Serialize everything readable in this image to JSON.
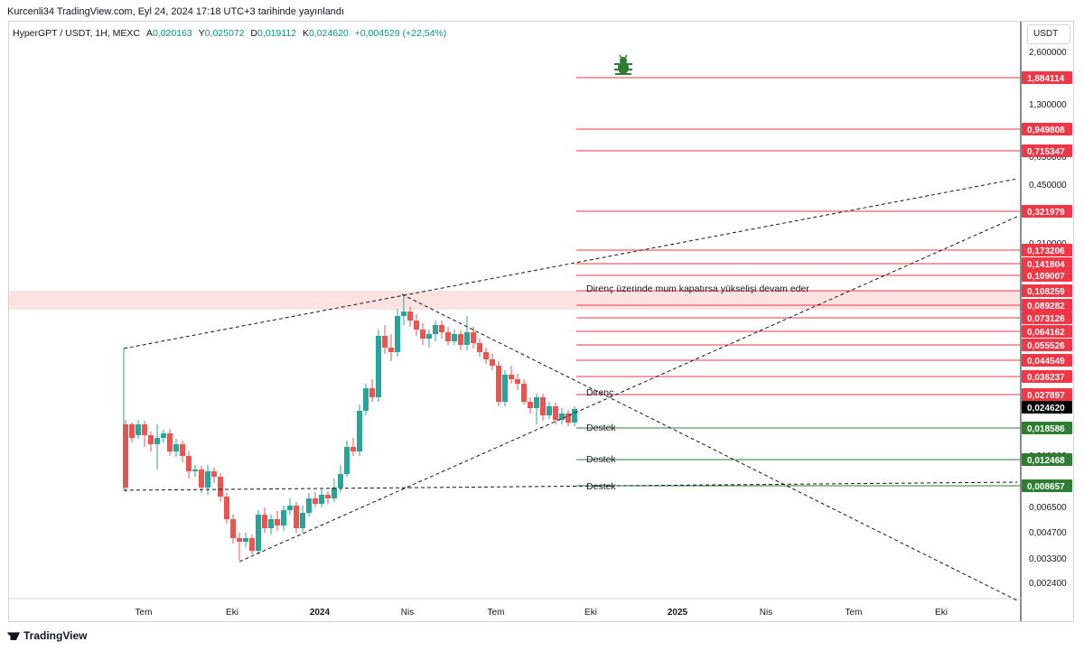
{
  "header": {
    "published": "Kurcenli34 TradingView.com, Eyl 24, 2024 17:18 UTC+3 tarihinde yayınlandı"
  },
  "symbol": {
    "name": "HyperGPT / USDT, 1H, MEXC",
    "open_label": "A",
    "open": "0,020163",
    "high_label": "Y",
    "high": "0,025072",
    "low_label": "D",
    "low": "0,019112",
    "close_label": "K",
    "close": "0,024620",
    "change": "+0,004529 (+22,54%)"
  },
  "currency_button": "USDT",
  "price_axis": [
    "2,600000",
    "1,300000",
    "0,650000",
    "0,450000",
    "0,210000",
    "0,140000",
    "0,010000",
    "0,006500",
    "0,004700",
    "0,003300",
    "0,002400"
  ],
  "levels": [
    {
      "price": "1,884114",
      "type": "resistance"
    },
    {
      "price": "0,949808",
      "type": "resistance"
    },
    {
      "price": "0,715347",
      "type": "resistance"
    },
    {
      "price": "0,321979",
      "type": "resistance"
    },
    {
      "price": "0,173206",
      "type": "resistance"
    },
    {
      "price": "0,141804",
      "type": "resistance"
    },
    {
      "price": "0,109007",
      "type": "resistance"
    },
    {
      "price": "0,108259",
      "type": "resistance"
    },
    {
      "price": "0,089282",
      "type": "resistance"
    },
    {
      "price": "0,073126",
      "type": "resistance"
    },
    {
      "price": "0,064162",
      "type": "resistance"
    },
    {
      "price": "0,055526",
      "type": "resistance"
    },
    {
      "price": "0,044549",
      "type": "resistance"
    },
    {
      "price": "0,036237",
      "type": "resistance"
    },
    {
      "price": "0,027897",
      "type": "resistance"
    },
    {
      "price": "0,024620",
      "type": "current"
    },
    {
      "price": "0,018586",
      "type": "support"
    },
    {
      "price": "0,012468",
      "type": "support"
    },
    {
      "price": "0,008657",
      "type": "support"
    }
  ],
  "time_axis": [
    "Tem",
    "Eki",
    "2024",
    "Nis",
    "Tem",
    "Eki",
    "2025",
    "Nis",
    "Tem",
    "Eki"
  ],
  "annotations": {
    "breakout_note": "Direnç üzerinde mum kapatırsa yükselişi devam eder",
    "resistance": "Direnç",
    "support_1": "Destek",
    "support_2": "Destek",
    "support_3": "Destek"
  },
  "colors": {
    "up": "#26a69a",
    "down": "#ef5350",
    "resistance": "#f23645",
    "support": "#2e7d32",
    "current": "#000000",
    "zone": "#fde2e2"
  },
  "icons": {
    "bug": "bug-icon",
    "brand": "tradingview-logo"
  },
  "footer": {
    "brand": "TradingView"
  }
}
